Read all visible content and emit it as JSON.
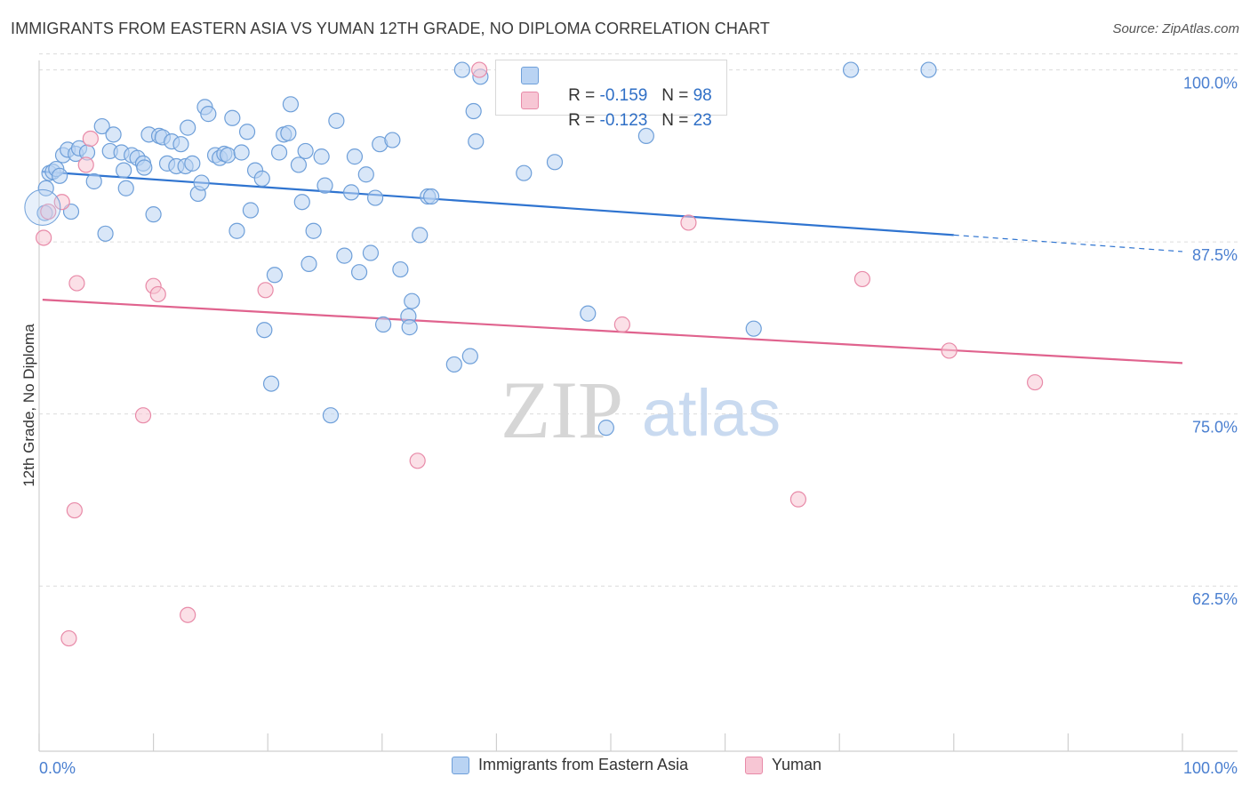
{
  "title": "IMMIGRANTS FROM EASTERN ASIA VS YUMAN 12TH GRADE, NO DIPLOMA CORRELATION CHART",
  "source": "Source: ZipAtlas.com",
  "watermark": {
    "zip": "ZIP",
    "atlas": "atlas"
  },
  "colors": {
    "blue_fill": "#b9d3f3",
    "blue_stroke": "#6e9fd9",
    "blue_line": "#2f74d0",
    "pink_fill": "#f7c6d4",
    "pink_stroke": "#e88aa8",
    "pink_line": "#e0638e",
    "axis_text": "#4a7fd0",
    "grid": "#dcdcdc"
  },
  "stats": {
    "series1": {
      "r_label": "R = ",
      "r_value": "-0.159",
      "n_label": "N = ",
      "n_value": "98"
    },
    "series2": {
      "r_label": "R = ",
      "r_value": "-0.123",
      "n_label": "N = ",
      "n_value": "23"
    }
  },
  "chart_data": {
    "type": "scatter",
    "title": "IMMIGRANTS FROM EASTERN ASIA VS YUMAN 12TH GRADE, NO DIPLOMA CORRELATION CHART",
    "xlabel": "",
    "ylabel": "12th Grade, No Diploma",
    "xlim": [
      0,
      100
    ],
    "ylim": [
      50.5,
      101.2
    ],
    "x_tick_labels": [
      "0.0%",
      "100.0%"
    ],
    "y_ticks": [
      100.0,
      87.5,
      75.0,
      62.5
    ],
    "y_tick_labels": [
      "100.0%",
      "87.5%",
      "75.0%",
      "62.5%"
    ],
    "grid": true,
    "legend_position": "bottom",
    "series": [
      {
        "name": "Immigrants from Eastern Asia",
        "color": "blue",
        "trend": {
          "x0": 0.3,
          "y0": 92.6,
          "x1": 80.0,
          "y1": 88.0,
          "dash_to": 100,
          "dash_y": 86.8
        },
        "points": [
          [
            0.5,
            89.6
          ],
          [
            0.6,
            91.4
          ],
          [
            0.9,
            92.5
          ],
          [
            1.2,
            92.6
          ],
          [
            1.5,
            92.8
          ],
          [
            1.8,
            92.3
          ],
          [
            2.1,
            93.8
          ],
          [
            2.5,
            94.2
          ],
          [
            2.8,
            89.7
          ],
          [
            3.2,
            93.9
          ],
          [
            3.5,
            94.3
          ],
          [
            4.2,
            94.0
          ],
          [
            4.8,
            91.9
          ],
          [
            5.5,
            95.9
          ],
          [
            5.8,
            88.1
          ],
          [
            6.2,
            94.1
          ],
          [
            6.5,
            95.3
          ],
          [
            7.2,
            94.0
          ],
          [
            7.4,
            92.7
          ],
          [
            7.6,
            91.4
          ],
          [
            8.1,
            93.8
          ],
          [
            8.6,
            93.6
          ],
          [
            9.1,
            93.2
          ],
          [
            9.2,
            92.9
          ],
          [
            9.6,
            95.3
          ],
          [
            10.0,
            89.5
          ],
          [
            10.5,
            95.2
          ],
          [
            10.8,
            95.1
          ],
          [
            11.2,
            93.2
          ],
          [
            11.6,
            94.8
          ],
          [
            12.0,
            93.0
          ],
          [
            12.4,
            94.6
          ],
          [
            12.8,
            93.0
          ],
          [
            13.0,
            95.8
          ],
          [
            13.4,
            93.2
          ],
          [
            13.9,
            91.0
          ],
          [
            14.2,
            91.8
          ],
          [
            14.5,
            97.3
          ],
          [
            14.8,
            96.8
          ],
          [
            15.4,
            93.8
          ],
          [
            15.8,
            93.6
          ],
          [
            16.2,
            93.9
          ],
          [
            16.5,
            93.8
          ],
          [
            16.9,
            96.5
          ],
          [
            17.3,
            88.3
          ],
          [
            17.7,
            94.0
          ],
          [
            18.2,
            95.5
          ],
          [
            18.5,
            89.8
          ],
          [
            18.9,
            92.7
          ],
          [
            19.5,
            92.1
          ],
          [
            19.7,
            81.1
          ],
          [
            20.3,
            77.2
          ],
          [
            20.6,
            85.1
          ],
          [
            21.0,
            94.0
          ],
          [
            21.4,
            95.3
          ],
          [
            21.8,
            95.4
          ],
          [
            22.0,
            97.5
          ],
          [
            22.7,
            93.1
          ],
          [
            23.0,
            90.4
          ],
          [
            23.3,
            94.1
          ],
          [
            23.6,
            85.9
          ],
          [
            24.0,
            88.3
          ],
          [
            24.7,
            93.7
          ],
          [
            25.0,
            91.6
          ],
          [
            25.5,
            74.9
          ],
          [
            26.0,
            96.3
          ],
          [
            26.7,
            86.5
          ],
          [
            27.3,
            91.1
          ],
          [
            27.6,
            93.7
          ],
          [
            28.0,
            85.3
          ],
          [
            28.6,
            92.4
          ],
          [
            29.0,
            86.7
          ],
          [
            29.4,
            90.7
          ],
          [
            29.8,
            94.6
          ],
          [
            30.1,
            81.5
          ],
          [
            30.9,
            94.9
          ],
          [
            31.6,
            85.5
          ],
          [
            32.3,
            82.1
          ],
          [
            32.4,
            81.3
          ],
          [
            32.6,
            83.2
          ],
          [
            33.3,
            88.0
          ],
          [
            34.0,
            90.8
          ],
          [
            34.3,
            90.8
          ],
          [
            36.3,
            78.6
          ],
          [
            37.0,
            100.0
          ],
          [
            37.7,
            79.2
          ],
          [
            38.0,
            97.0
          ],
          [
            38.2,
            94.8
          ],
          [
            38.6,
            99.5
          ],
          [
            42.4,
            92.5
          ],
          [
            45.1,
            93.3
          ],
          [
            48.0,
            82.3
          ],
          [
            49.6,
            74.0
          ],
          [
            53.1,
            95.2
          ],
          [
            62.5,
            81.2
          ],
          [
            71.0,
            100.0
          ],
          [
            77.8,
            100.0
          ]
        ]
      },
      {
        "name": "Yuman",
        "color": "pink",
        "trend": {
          "x0": 0.3,
          "y0": 83.3,
          "x1": 100.0,
          "y1": 78.7
        },
        "points": [
          [
            0.4,
            87.8
          ],
          [
            0.8,
            89.7
          ],
          [
            2.0,
            90.4
          ],
          [
            2.6,
            58.7
          ],
          [
            3.1,
            68.0
          ],
          [
            3.3,
            84.5
          ],
          [
            4.1,
            93.1
          ],
          [
            4.5,
            95.0
          ],
          [
            9.1,
            74.9
          ],
          [
            10.0,
            84.3
          ],
          [
            10.4,
            83.7
          ],
          [
            13.0,
            60.4
          ],
          [
            19.8,
            84.0
          ],
          [
            33.1,
            71.6
          ],
          [
            38.5,
            100.0
          ],
          [
            51.0,
            81.5
          ],
          [
            56.8,
            88.9
          ],
          [
            66.4,
            68.8
          ],
          [
            72.0,
            84.8
          ],
          [
            79.6,
            79.6
          ],
          [
            87.1,
            77.3
          ]
        ]
      }
    ]
  }
}
